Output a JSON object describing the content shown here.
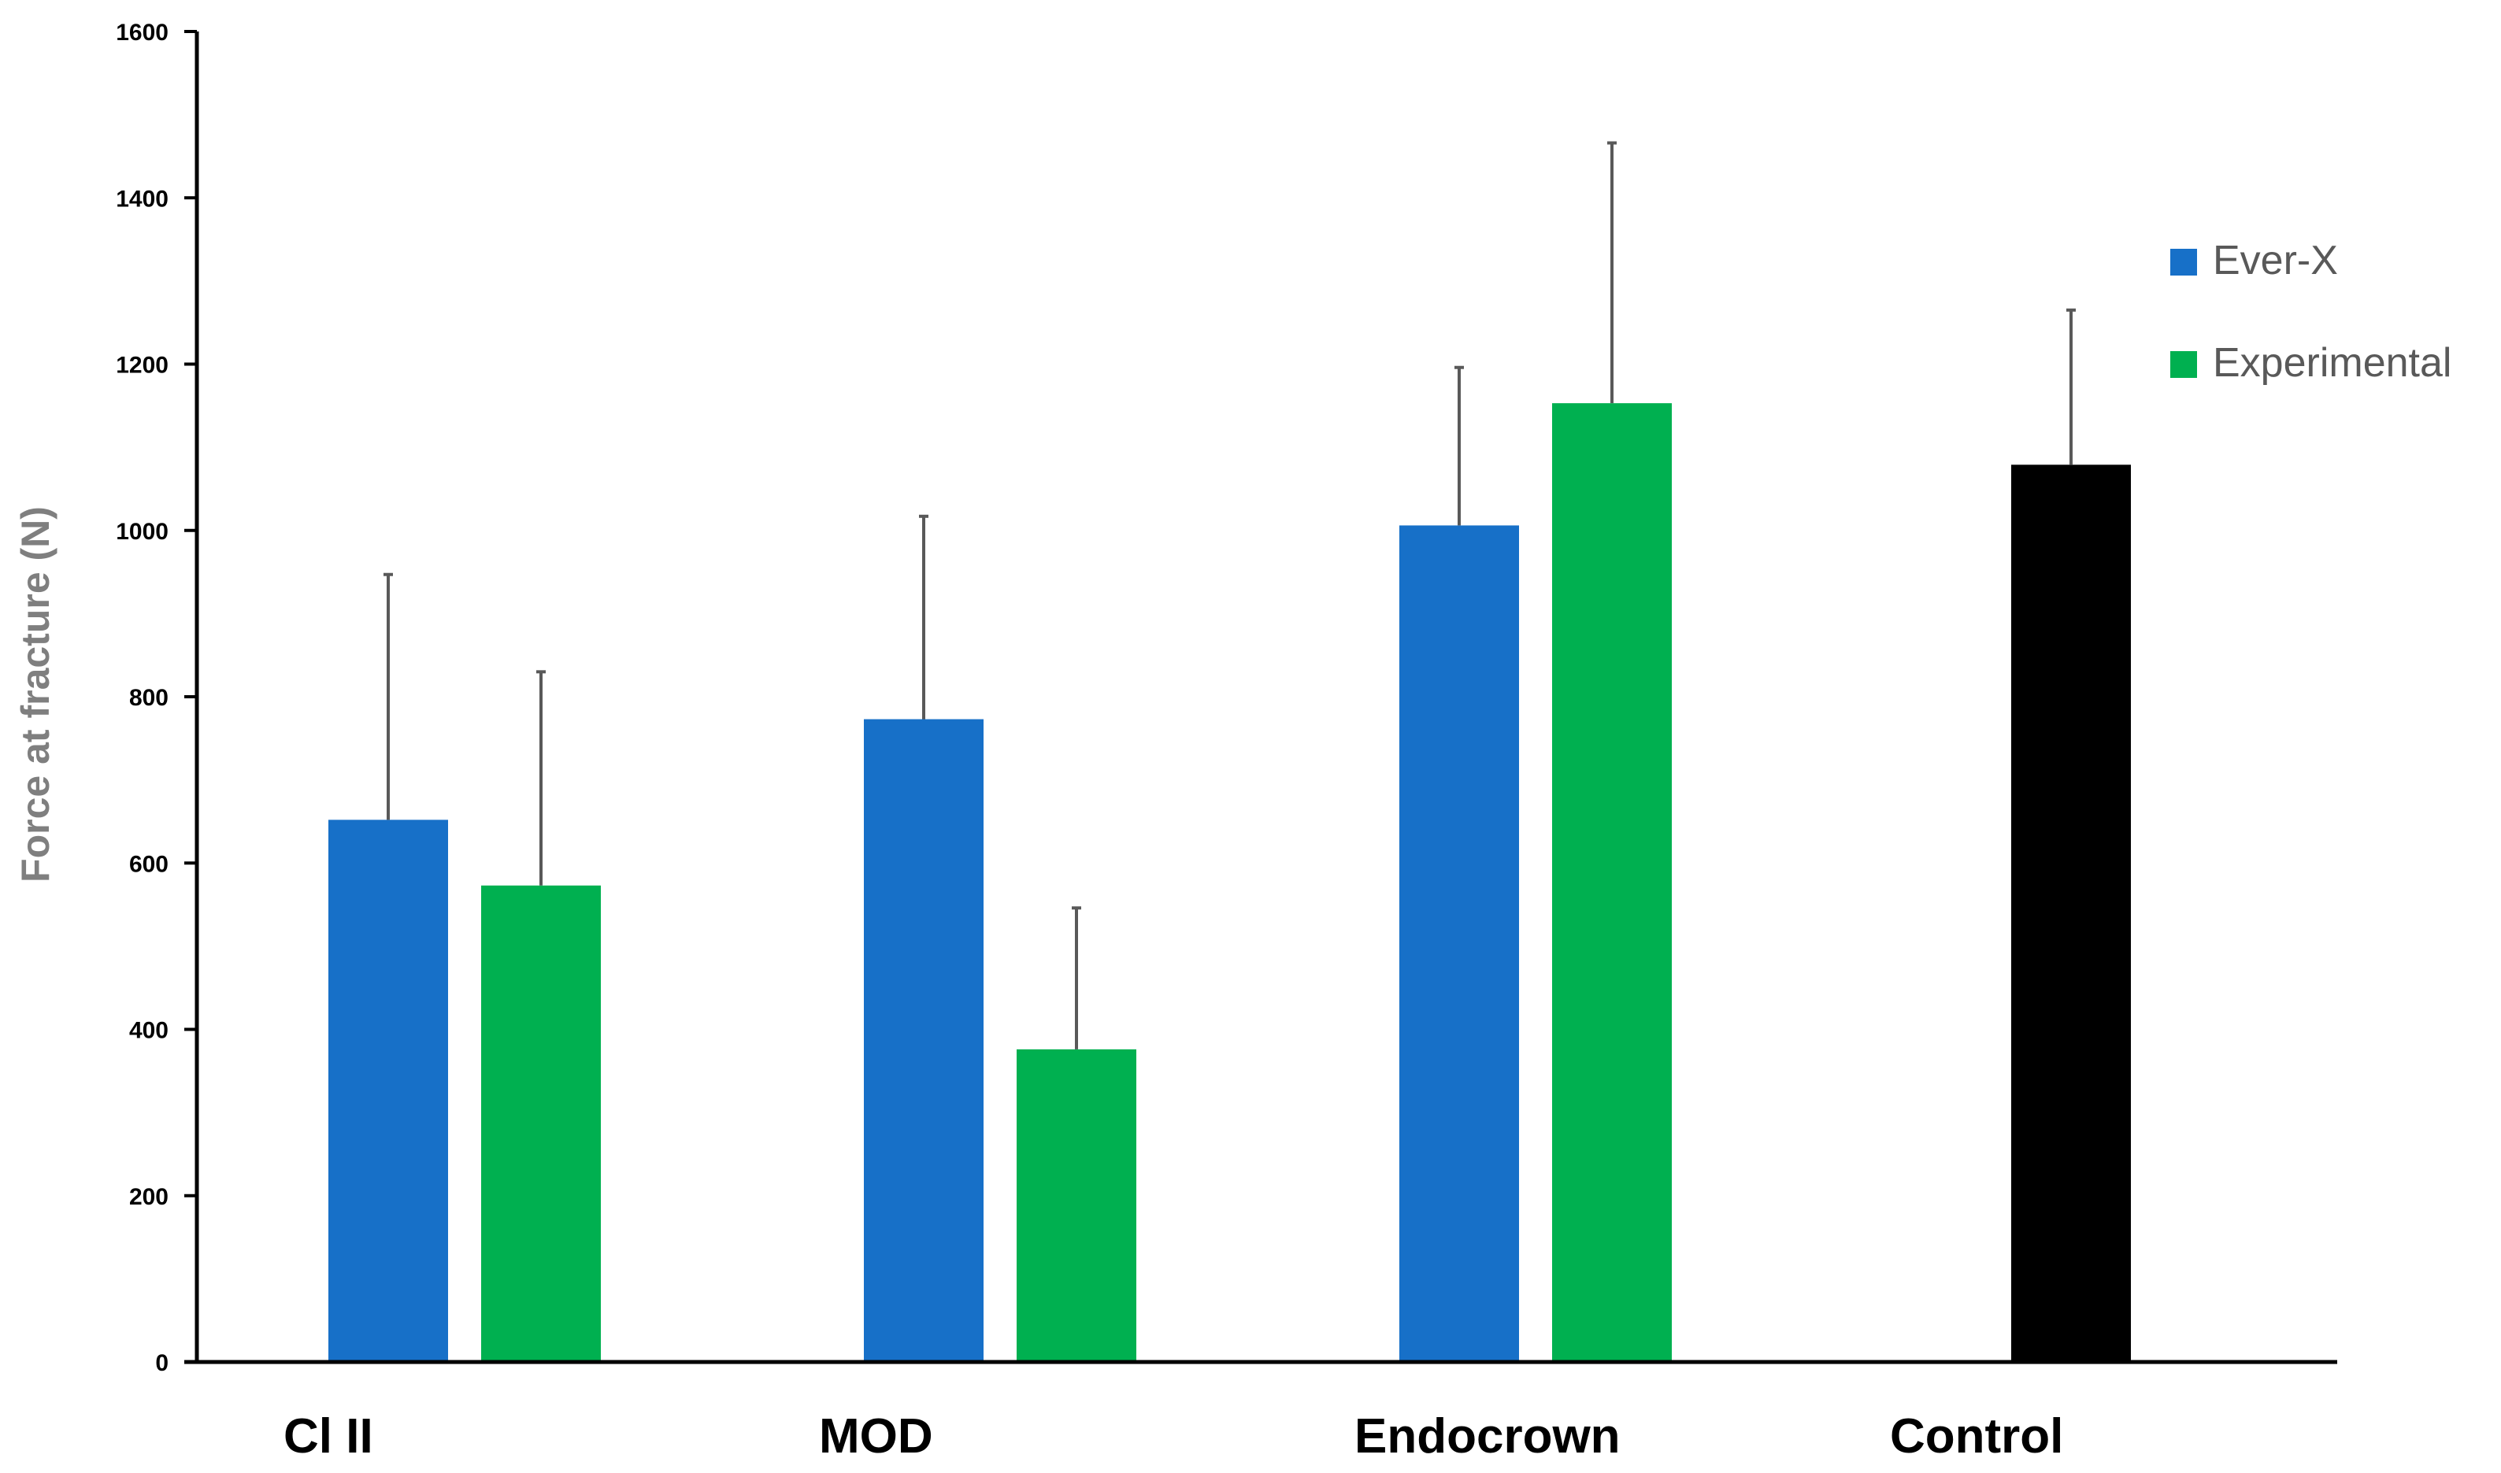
{
  "chart_data": {
    "type": "bar",
    "title": "",
    "xlabel": "",
    "ylabel": "Force at fracture (N)",
    "ylim": [
      0,
      1600
    ],
    "yticks": [
      0,
      200,
      400,
      600,
      800,
      1000,
      1200,
      1400,
      1600
    ],
    "grid": false,
    "legend_position": "right",
    "categories": [
      "Cl II",
      "MOD",
      "Endocrown",
      "Control"
    ],
    "series": [
      {
        "name": "Ever-X",
        "color": "#1770C8",
        "values": [
          652,
          773,
          1006,
          null
        ],
        "errors": [
          295,
          244,
          190,
          null
        ]
      },
      {
        "name": "Experimental",
        "color": "#00B050",
        "values": [
          573,
          376,
          1153,
          null
        ],
        "errors": [
          257,
          170,
          313,
          null
        ]
      }
    ],
    "control": {
      "category": "Control",
      "color": "#000000",
      "value": 1079,
      "error": 186
    }
  }
}
